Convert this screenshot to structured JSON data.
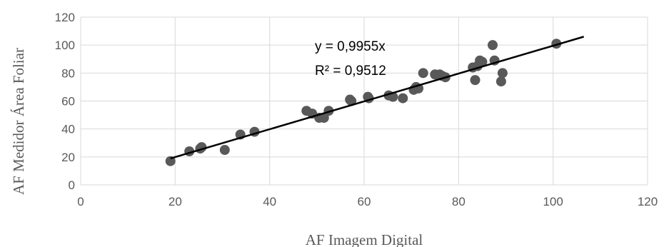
{
  "chart_data": {
    "type": "scatter",
    "xlabel": "AF Imagem Digital",
    "ylabel": "AF Medidor Área Foliar",
    "xlim": [
      0,
      120
    ],
    "ylim": [
      0,
      120
    ],
    "xticks": [
      0,
      20,
      40,
      60,
      80,
      100,
      120
    ],
    "yticks": [
      0,
      20,
      40,
      60,
      80,
      100,
      120
    ],
    "grid": "both",
    "series": [
      {
        "points": [
          [
            19,
            17
          ],
          [
            23,
            24
          ],
          [
            25.3,
            26
          ],
          [
            25.6,
            27
          ],
          [
            30.5,
            25
          ],
          [
            33.8,
            36
          ],
          [
            36.8,
            38
          ],
          [
            47.8,
            53
          ],
          [
            49,
            51
          ],
          [
            50.5,
            48
          ],
          [
            51.5,
            48
          ],
          [
            52.5,
            53
          ],
          [
            57,
            61
          ],
          [
            57.3,
            60
          ],
          [
            60.8,
            63
          ],
          [
            61,
            62
          ],
          [
            65.2,
            64
          ],
          [
            66.1,
            63
          ],
          [
            68.2,
            62
          ],
          [
            70.5,
            68
          ],
          [
            71,
            70
          ],
          [
            71.5,
            69
          ],
          [
            72.5,
            80
          ],
          [
            75,
            79
          ],
          [
            76,
            79
          ],
          [
            76.5,
            78
          ],
          [
            77.2,
            77
          ],
          [
            83,
            84
          ],
          [
            83.5,
            75
          ],
          [
            84,
            85
          ],
          [
            84.5,
            89
          ],
          [
            85,
            88
          ],
          [
            87.2,
            100
          ],
          [
            87.6,
            89
          ],
          [
            89,
            74
          ],
          [
            89.3,
            80
          ],
          [
            100.7,
            101
          ]
        ],
        "color": "#595959"
      }
    ],
    "trendline": {
      "slope": 0.9955,
      "x_range": [
        19,
        106.5
      ],
      "color": "#000000",
      "equation": "y = 0,9955x",
      "r_squared": "R² = 0,9512"
    }
  }
}
